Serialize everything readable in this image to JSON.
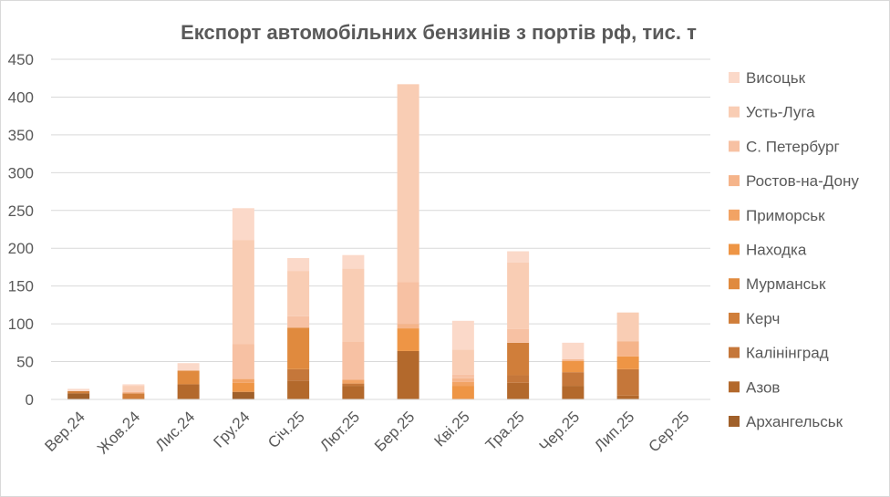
{
  "chart_data": {
    "type": "bar",
    "stacked": true,
    "title": "Експорт автомобільних бензинів з портів рф, тис. т",
    "xlabel": "",
    "ylabel": "",
    "ylim": [
      0,
      450
    ],
    "yticks": [
      0,
      50,
      100,
      150,
      200,
      250,
      300,
      350,
      400,
      450
    ],
    "grid": true,
    "legend_position": "right",
    "categories": [
      "Вер.24",
      "Жов.24",
      "Лис.24",
      "Гру.24",
      "Січ.25",
      "Лют.25",
      "Бер.25",
      "Кві.25",
      "Тра.25",
      "Чер.25",
      "Лип.25",
      "Сер.25"
    ],
    "series": [
      {
        "name": "Архангельськ",
        "color": "#a0602a",
        "values": [
          8,
          0,
          0,
          10,
          0,
          0,
          0,
          0,
          0,
          0,
          0,
          0
        ]
      },
      {
        "name": "Азов",
        "color": "#b3692c",
        "values": [
          0,
          0,
          20,
          0,
          25,
          18,
          64,
          0,
          22,
          18,
          5,
          0
        ]
      },
      {
        "name": "Калінінград",
        "color": "#c5773a",
        "values": [
          0,
          0,
          0,
          0,
          15,
          3,
          0,
          0,
          10,
          18,
          35,
          0
        ]
      },
      {
        "name": "Керч",
        "color": "#d07e3a",
        "values": [
          3,
          8,
          0,
          0,
          0,
          0,
          0,
          0,
          43,
          0,
          0,
          0
        ]
      },
      {
        "name": "Мурманськ",
        "color": "#e08a3e",
        "values": [
          0,
          0,
          18,
          0,
          55,
          0,
          0,
          0,
          0,
          0,
          0,
          0
        ]
      },
      {
        "name": "Находка",
        "color": "#ee9545",
        "values": [
          0,
          0,
          0,
          12,
          0,
          0,
          30,
          18,
          0,
          15,
          17,
          0
        ]
      },
      {
        "name": "Приморськ",
        "color": "#f2a364",
        "values": [
          0,
          0,
          0,
          5,
          0,
          5,
          0,
          5,
          0,
          0,
          0,
          0
        ]
      },
      {
        "name": "Ростов-на-Дону",
        "color": "#f5b48a",
        "values": [
          0,
          2,
          0,
          0,
          0,
          0,
          6,
          5,
          0,
          2,
          20,
          0
        ]
      },
      {
        "name": "С. Петербург",
        "color": "#f7c1a3",
        "values": [
          0,
          0,
          0,
          46,
          15,
          50,
          55,
          5,
          18,
          0,
          0,
          0
        ]
      },
      {
        "name": "Усть-Луга",
        "color": "#f9cdb4",
        "values": [
          0,
          8,
          0,
          138,
          60,
          97,
          262,
          33,
          88,
          0,
          38,
          0
        ]
      },
      {
        "name": "Висоцьк",
        "color": "#fbd9c9",
        "values": [
          3,
          2,
          10,
          42,
          17,
          18,
          0,
          38,
          15,
          22,
          0,
          0
        ]
      }
    ]
  }
}
